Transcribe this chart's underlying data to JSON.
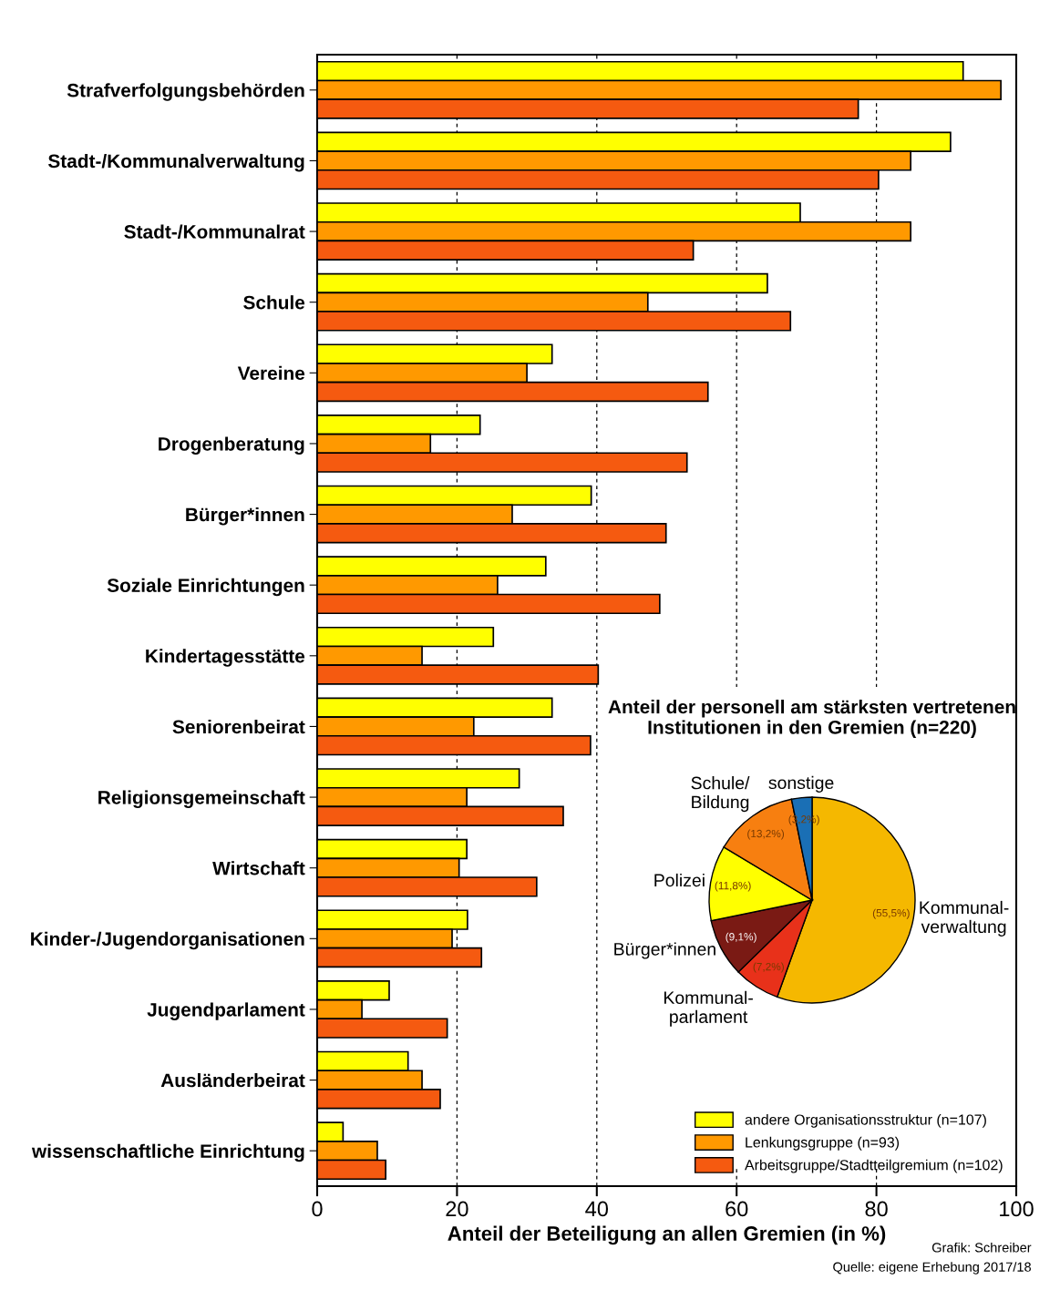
{
  "chart_data": [
    {
      "type": "bar",
      "orientation": "horizontal",
      "xlabel": "Anteil der Beteiligung an allen Gremien (in %)",
      "categories": [
        "Strafverfolgungsbehörden",
        "Stadt-/Kommunalverwaltung",
        "Stadt-/Kommunalrat",
        "Schule",
        "Vereine",
        "Drogenberatung",
        "Bürger*innen",
        "Soziale Einrichtungen",
        "Kindertagesstätte",
        "Seniorenbeirat",
        "Religionsgemeinschaft",
        "Wirtschaft",
        "Kinder-/Jugendorganisationen",
        "Jugendparlament",
        "Ausländerbeirat",
        "wissenschaftliche Einrichtung"
      ],
      "series": [
        {
          "name": "andere Organisationsstruktur (n=107)",
          "color": "#ffff00",
          "values": [
            92.4,
            90.6,
            69.1,
            64.4,
            33.6,
            23.3,
            39.2,
            32.7,
            25.2,
            33.6,
            28.9,
            21.4,
            21.5,
            10.3,
            13.0,
            3.7
          ]
        },
        {
          "name": "Lenkungsgruppe (n=93)",
          "color": "#ff9900",
          "values": [
            97.8,
            84.9,
            84.9,
            47.3,
            30.0,
            16.2,
            27.9,
            25.8,
            15.0,
            22.4,
            21.4,
            20.3,
            19.3,
            6.4,
            15.0,
            8.6
          ]
        },
        {
          "name": "Arbeitsgruppe/Stadtteilgremium (n=102)",
          "color": "#f55a10",
          "values": [
            77.4,
            80.3,
            53.8,
            67.7,
            55.9,
            52.9,
            49.9,
            49.0,
            40.2,
            39.1,
            35.2,
            31.4,
            23.5,
            18.6,
            17.6,
            9.8
          ]
        }
      ],
      "xlim": [
        0,
        100
      ],
      "xticks": [
        0,
        20,
        40,
        60,
        80,
        100
      ],
      "grid": "x",
      "legend": "bottom right",
      "annotations": [
        "Grafik: Schreiber",
        "Quelle: eigene Erhebung 2017/18"
      ]
    },
    {
      "type": "pie",
      "title": "Anteil der personell am stärksten vertretenen\nInstitutionen in den Gremien (n=220)",
      "categories": [
        "Kommunal-\nverwaltung",
        "Kommunal-\nparlament",
        "Bürger*innen",
        "Polizei",
        "Schule/\nBildung",
        "sonstige"
      ],
      "values": [
        55.5,
        7.2,
        9.1,
        11.8,
        13.2,
        3.2
      ],
      "colors": [
        "#f5b800",
        "#e8311a",
        "#7a1a14",
        "#ffff00",
        "#f77f10",
        "#1a6fb5"
      ],
      "value_labels": [
        "(55,5%)",
        "(7,2%)",
        "(9,1%)",
        "(11,8%)",
        "(13,2%)",
        "(3,2%)"
      ]
    }
  ]
}
